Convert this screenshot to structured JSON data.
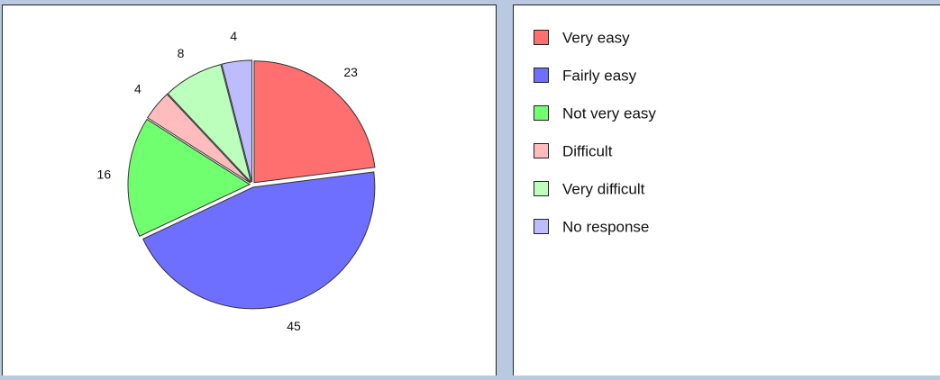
{
  "chart_data": {
    "type": "pie",
    "categories": [
      "Very easy",
      "Fairly easy",
      "Not very easy",
      "Difficult",
      "Very difficult",
      "No response"
    ],
    "values": [
      23,
      45,
      16,
      4,
      8,
      4
    ],
    "colors": [
      "#ff6f6f",
      "#6f6fff",
      "#6fff6f",
      "#ffbcbc",
      "#bcffbc",
      "#bcbcff"
    ],
    "legend": "right"
  }
}
